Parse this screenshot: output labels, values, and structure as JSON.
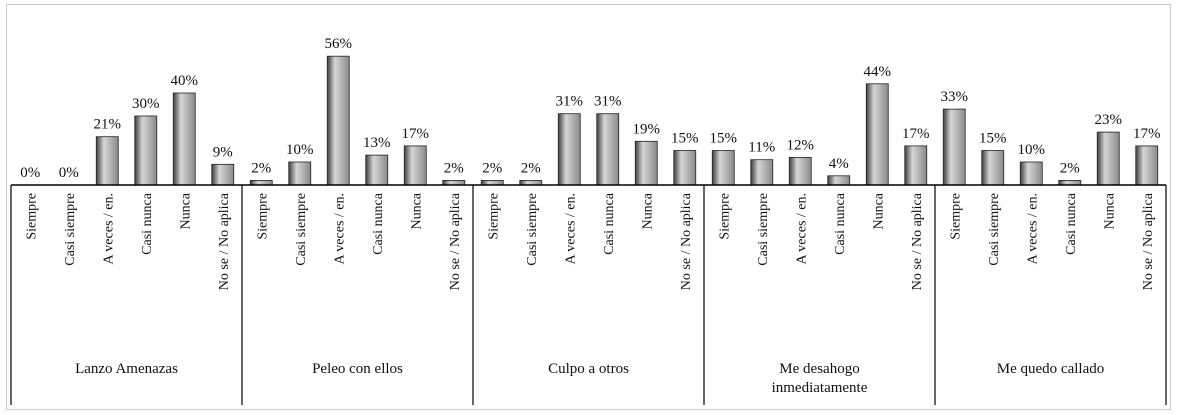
{
  "chart_data": {
    "type": "bar",
    "colors": {
      "bar": "#8a8a8a",
      "bar_light": "#d6d6d6",
      "bar_dark": "#3f3f3f",
      "axis": "#000000"
    },
    "grid": false,
    "legend": "none",
    "ylim": [
      0,
      60
    ],
    "groups": [
      {
        "label": "Lanzo Amenazas",
        "label_lines": [
          "Lanzo Amenazas"
        ],
        "categories": [
          "Siempre",
          "Casi siempre",
          "A veces / en.",
          "Casi nunca",
          "Nunca",
          "No se / No aplica"
        ],
        "values": [
          0,
          0,
          21,
          30,
          40,
          9
        ],
        "labels": [
          "0%",
          "0%",
          "21%",
          "30%",
          "40%",
          "9%"
        ]
      },
      {
        "label": "Peleo con ellos",
        "label_lines": [
          "Peleo con ellos"
        ],
        "categories": [
          "Siempre",
          "Casi siempre",
          "A veces / en.",
          "Casi nunca",
          "Nunca",
          "No se / No aplica"
        ],
        "values": [
          2,
          10,
          56,
          13,
          17,
          2
        ],
        "labels": [
          "2%",
          "10%",
          "56%",
          "13%",
          "17%",
          "2%"
        ]
      },
      {
        "label": "Culpo a otros",
        "label_lines": [
          "Culpo a otros"
        ],
        "categories": [
          "Siempre",
          "Casi siempre",
          "A veces / en.",
          "Casi nunca",
          "Nunca",
          "No se / No aplica"
        ],
        "values": [
          2,
          2,
          31,
          31,
          19,
          15
        ],
        "labels": [
          "2%",
          "2%",
          "31%",
          "31%",
          "19%",
          "15%"
        ]
      },
      {
        "label": "Me desahogo inmediatamente",
        "label_lines": [
          "Me desahogo",
          "inmediatamente"
        ],
        "categories": [
          "Siempre",
          "Casi siempre",
          "A veces / en.",
          "Casi nunca",
          "Nunca",
          "No se / No aplica"
        ],
        "values": [
          15,
          11,
          12,
          4,
          44,
          17
        ],
        "labels": [
          "15%",
          "11%",
          "12%",
          "4%",
          "44%",
          "17%"
        ]
      },
      {
        "label": "Me quedo callado",
        "label_lines": [
          "Me quedo callado"
        ],
        "categories": [
          "Siempre",
          "Casi siempre",
          "A veces / en.",
          "Casi nunca",
          "Nunca",
          "No se / No aplica"
        ],
        "values": [
          33,
          15,
          10,
          2,
          23,
          17
        ],
        "labels": [
          "33%",
          "15%",
          "10%",
          "2%",
          "23%",
          "17%"
        ]
      }
    ]
  }
}
